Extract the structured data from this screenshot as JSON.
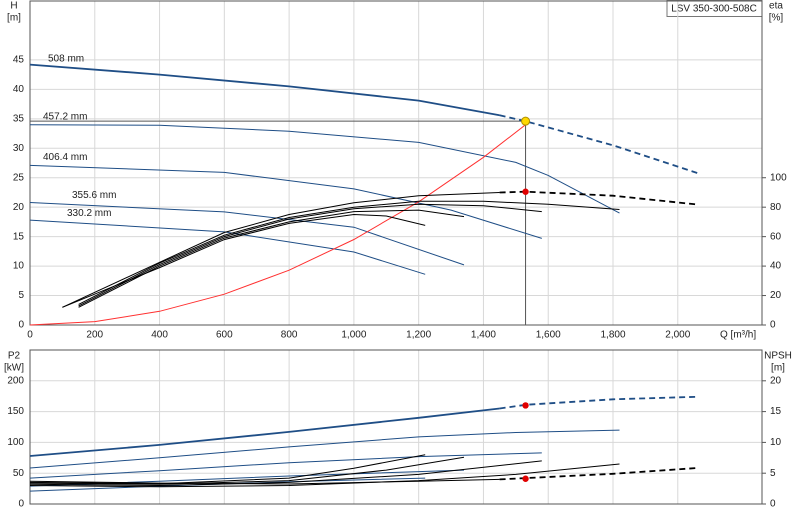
{
  "chart_data": [
    {
      "type": "line",
      "title": "LSV 350-300-508C",
      "ylabel": "H",
      "yunit": "[m]",
      "y2label": "eta",
      "y2unit": "[%]",
      "xlabel": "Q [m³/h]",
      "xlim": [
        0,
        2260
      ],
      "xticks": [
        0,
        200,
        400,
        600,
        800,
        {
          "value": 1000,
          "label": "1,000"
        },
        {
          "value": 1200,
          "label": "1,200"
        },
        {
          "value": 1400,
          "label": "1,400"
        },
        {
          "value": 1600,
          "label": "1,600"
        },
        {
          "value": 1800,
          "label": "1,800"
        },
        {
          "value": 2000,
          "label": "2,000"
        }
      ],
      "show_xtick_labels": true,
      "ylim": [
        0,
        55
      ],
      "yticks": [
        0,
        5,
        10,
        15,
        20,
        25,
        30,
        35,
        40,
        45
      ],
      "y2lim": [
        0,
        220
      ],
      "y2ticks": [
        0,
        20,
        40,
        60,
        80,
        100
      ],
      "grid": true,
      "series": [
        {
          "name": "508 mm",
          "color": "#1f4e86",
          "dash_from": 1450,
          "x": [
            0,
            400,
            800,
            1200,
            1450,
            1530,
            1800,
            2060
          ],
          "values": [
            44.2,
            42.5,
            40.5,
            38.1,
            35.6,
            34.6,
            30.5,
            25.8
          ]
        },
        {
          "name": "457.2 mm",
          "color": "#1f4e86",
          "x": [
            0,
            400,
            800,
            1200,
            1500,
            1600,
            1820
          ],
          "values": [
            34.0,
            33.9,
            32.9,
            31.0,
            27.6,
            25.4,
            19.0
          ]
        },
        {
          "name": "406.4 mm",
          "color": "#1f4e86",
          "x": [
            0,
            600,
            1000,
            1300,
            1580
          ],
          "values": [
            27.1,
            25.9,
            23.1,
            19.5,
            14.7
          ]
        },
        {
          "name": "355.6 mm",
          "color": "#1f4e86",
          "x": [
            0,
            600,
            1000,
            1340
          ],
          "values": [
            20.8,
            19.2,
            16.6,
            10.2
          ]
        },
        {
          "name": "330.2 mm",
          "color": "#1f4e86",
          "x": [
            0,
            600,
            1000,
            1220
          ],
          "values": [
            17.8,
            15.8,
            12.4,
            8.6
          ]
        },
        {
          "color": "#ff3030",
          "x": [
            0,
            200,
            400,
            600,
            800,
            1000,
            1200,
            1400,
            1530
          ],
          "values": [
            0,
            0.58,
            2.32,
            5.23,
            9.3,
            14.52,
            20.92,
            28.47,
            34.0
          ]
        },
        {
          "color": "#000000",
          "axis": "y2",
          "dash_from": 1450,
          "x": [
            100,
            400,
            600,
            800,
            1000,
            1200,
            1450,
            1530,
            1800,
            2060
          ],
          "values": [
            12,
            42.6,
            62.8,
            75,
            83,
            87.8,
            90,
            90.5,
            87.8,
            81.8
          ]
        },
        {
          "color": "#000000",
          "axis": "y2",
          "x": [
            150,
            400,
            600,
            800,
            1000,
            1200,
            1400,
            1600,
            1820
          ],
          "values": [
            14,
            42,
            61,
            73,
            80,
            84,
            84,
            82,
            78.4
          ]
        },
        {
          "color": "#000000",
          "axis": "y2",
          "x": [
            150,
            400,
            600,
            800,
            1000,
            1200,
            1400,
            1580
          ],
          "values": [
            13,
            41,
            60,
            72,
            79,
            82,
            81,
            77
          ]
        },
        {
          "color": "#000000",
          "axis": "y2",
          "x": [
            150,
            400,
            600,
            800,
            1000,
            1200,
            1340
          ],
          "values": [
            12,
            40,
            59,
            70,
            77,
            78,
            73.6
          ]
        },
        {
          "color": "#000000",
          "axis": "y2",
          "x": [
            100,
            400,
            600,
            800,
            1000,
            1100,
            1220
          ],
          "values": [
            12,
            39,
            58,
            69,
            75,
            74,
            67.6
          ]
        }
      ],
      "points": [
        {
          "x": 1530,
          "y": 34.6,
          "color": "#ffd800",
          "guide": true
        },
        {
          "x": 1530,
          "y": 90.5,
          "axis": "y2",
          "color": "#e00000"
        }
      ]
    },
    {
      "type": "line",
      "ylabel": "P2",
      "yunit": "[kW]",
      "y2label": "NPSH",
      "y2unit": "[m]",
      "xlim": [
        0,
        2260
      ],
      "xticks": [
        0,
        200,
        400,
        600,
        800,
        1000,
        1200,
        1400,
        1600,
        1800,
        2000
      ],
      "show_xtick_labels": false,
      "ylim": [
        0,
        250
      ],
      "yticks": [
        0,
        50,
        100,
        150,
        200
      ],
      "y2lim": [
        0,
        25
      ],
      "y2ticks": [
        0,
        5,
        10,
        15,
        20
      ],
      "grid": true,
      "series": [
        {
          "color": "#1f4e86",
          "dash_from": 1450,
          "x": [
            0,
            400,
            800,
            1200,
            1450,
            1530,
            1800,
            2060
          ],
          "values": [
            78,
            96,
            117,
            140,
            155,
            161,
            170,
            174
          ]
        },
        {
          "color": "#1f4e86",
          "x": [
            0,
            400,
            800,
            1200,
            1500,
            1820
          ],
          "values": [
            58.5,
            75,
            92.7,
            109,
            116,
            120
          ]
        },
        {
          "color": "#1f4e86",
          "x": [
            0,
            400,
            800,
            1200,
            1580
          ],
          "values": [
            42,
            54,
            67,
            77,
            83
          ]
        },
        {
          "color": "#1f4e86",
          "x": [
            0,
            400,
            800,
            1340
          ],
          "values": [
            29,
            37,
            45.5,
            55
          ]
        },
        {
          "color": "#1f4e86",
          "x": [
            0,
            400,
            800,
            1220
          ],
          "values": [
            21,
            29,
            36,
            42
          ]
        },
        {
          "color": "#000000",
          "axis": "y2",
          "dash_from": 1450,
          "x": [
            0,
            400,
            800,
            1200,
            1450,
            1530,
            1800,
            2060
          ],
          "values": [
            3.7,
            3.4,
            3.25,
            3.7,
            4.0,
            4.2,
            4.9,
            5.85
          ]
        },
        {
          "color": "#000000",
          "axis": "y2",
          "x": [
            0,
            400,
            800,
            1200,
            1500,
            1820
          ],
          "values": [
            3.0,
            2.8,
            3.0,
            3.8,
            4.8,
            6.5
          ]
        },
        {
          "color": "#000000",
          "axis": "y2",
          "x": [
            0,
            400,
            800,
            1200,
            1580
          ],
          "values": [
            3.2,
            3.0,
            3.5,
            4.8,
            7.0
          ]
        },
        {
          "color": "#000000",
          "axis": "y2",
          "x": [
            0,
            400,
            800,
            1100,
            1340
          ],
          "values": [
            3.4,
            3.2,
            3.8,
            5.5,
            7.6
          ]
        },
        {
          "color": "#000000",
          "axis": "y2",
          "x": [
            0,
            400,
            800,
            1000,
            1220
          ],
          "values": [
            3.5,
            3.3,
            4.2,
            5.8,
            8.0
          ]
        }
      ],
      "points": [
        {
          "x": 1530,
          "y": 160,
          "color": "#e00000"
        },
        {
          "x": 1530,
          "y": 4.1,
          "axis": "y2",
          "color": "#e00000"
        }
      ]
    }
  ]
}
